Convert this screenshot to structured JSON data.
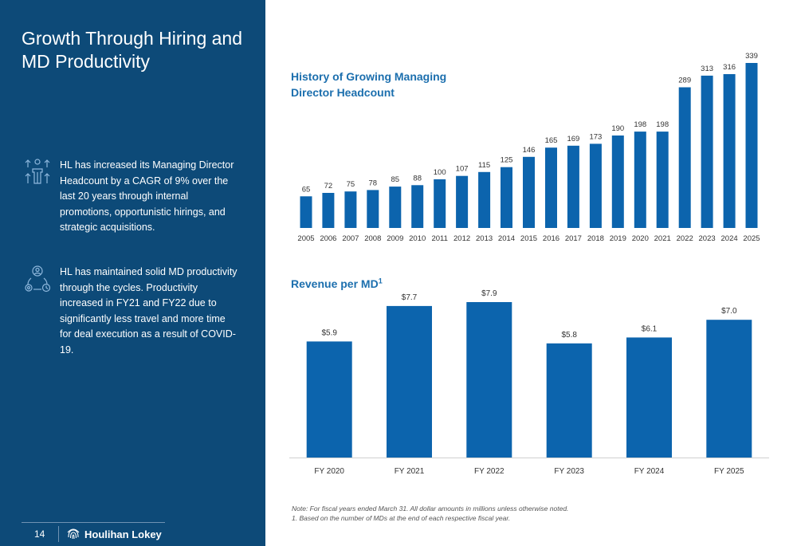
{
  "page": {
    "title": "Growth Through Hiring and MD Productivity",
    "page_number": "14",
    "brand": "Houlihan Lokey"
  },
  "bullets": [
    {
      "icon": "growth-people-icon",
      "text": "HL has increased its Managing Director Headcount by a CAGR of 9% over the last 20 years through internal promotions, opportunistic hirings, and strategic acquisitions."
    },
    {
      "icon": "productivity-person-gear-icon",
      "text": "HL has maintained solid MD productivity through the cycles. Productivity increased in FY21 and FY22 due to significantly less travel and more time for deal execution as a result of COVID-19."
    }
  ],
  "notes": {
    "line1": "Note: For fiscal years ended March 31. All dollar amounts in millions unless otherwise noted.",
    "line2": "1. Based on the number of MDs at the end of each respective fiscal year."
  },
  "colors": {
    "panel": "#0d4a78",
    "bar": "#0c64ad",
    "title_accent": "#1c6fae"
  },
  "chart_data": [
    {
      "type": "bar",
      "title": "History of Growing Managing Director Headcount",
      "categories": [
        "2005",
        "2006",
        "2007",
        "2008",
        "2009",
        "2010",
        "2011",
        "2012",
        "2013",
        "2014",
        "2015",
        "2016",
        "2017",
        "2018",
        "2019",
        "2020",
        "2021",
        "2022",
        "2023",
        "2024",
        "2025"
      ],
      "values": [
        65,
        72,
        75,
        78,
        85,
        88,
        100,
        107,
        115,
        125,
        146,
        165,
        169,
        173,
        190,
        198,
        198,
        289,
        313,
        316,
        339
      ],
      "labels": [
        "65",
        "72",
        "75",
        "78",
        "85",
        "88",
        "100",
        "107",
        "115",
        "125",
        "146",
        "165",
        "169",
        "173",
        "190",
        "198",
        "198",
        "289",
        "313",
        "316",
        "339"
      ],
      "ylim": [
        0,
        339
      ],
      "grid": false
    },
    {
      "type": "bar",
      "title": "Revenue per MD",
      "title_superscript": "1",
      "categories": [
        "FY 2020",
        "FY 2021",
        "FY 2022",
        "FY 2023",
        "FY 2024",
        "FY 2025"
      ],
      "values": [
        5.9,
        7.7,
        7.9,
        5.8,
        6.1,
        7.0
      ],
      "labels": [
        "$5.9",
        "$7.7",
        "$7.9",
        "$5.8",
        "$6.1",
        "$7.0"
      ],
      "ylim": [
        0,
        7.9
      ],
      "grid": false
    }
  ]
}
